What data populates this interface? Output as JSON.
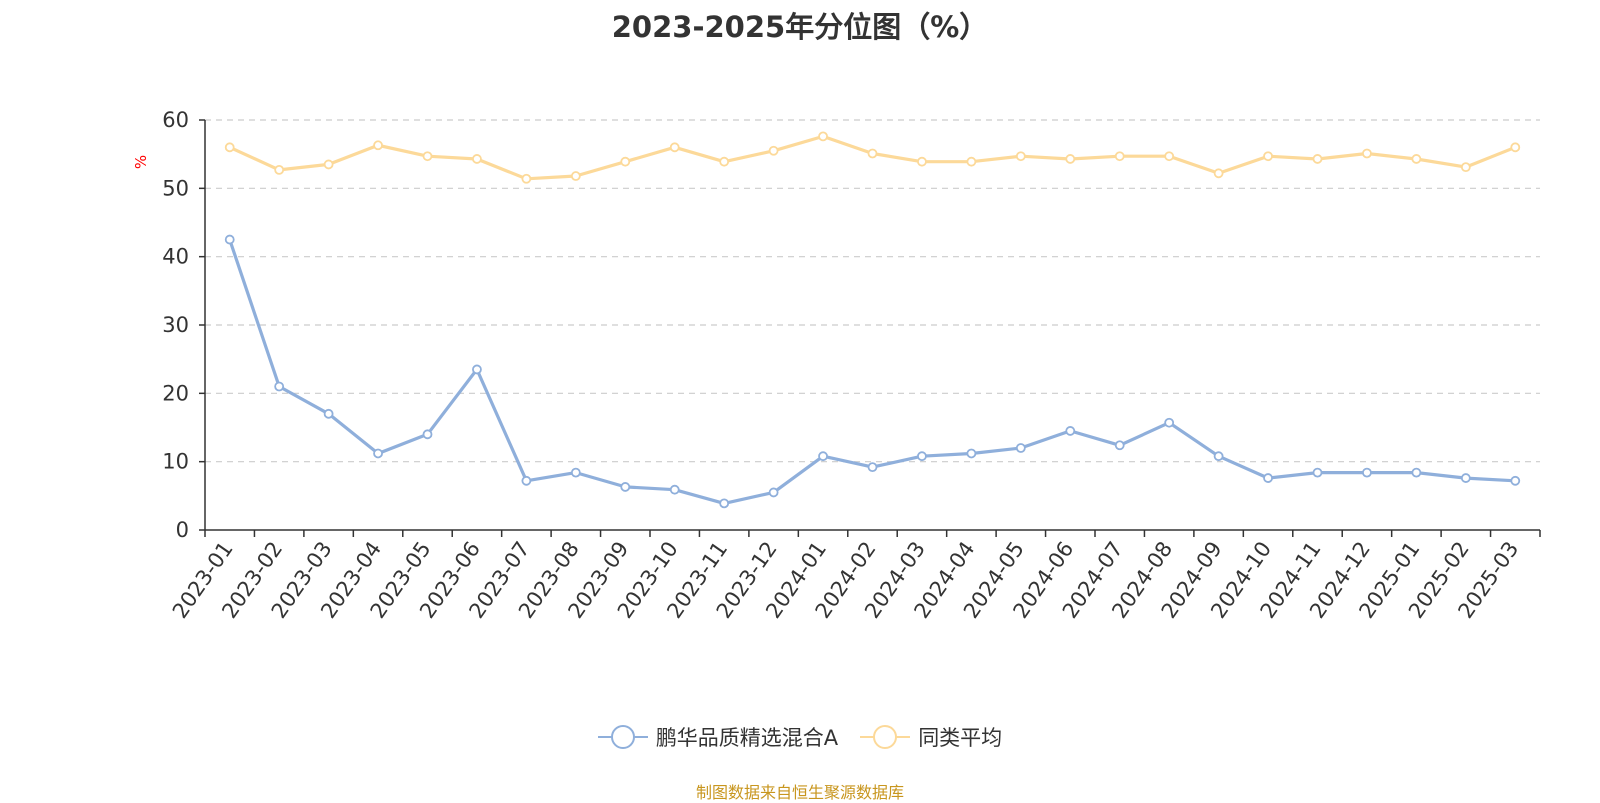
{
  "chart_data": {
    "type": "line",
    "title": "2023-2025年分位图（%）",
    "ylabel": "%",
    "xlabel": "",
    "ylim": [
      0,
      60
    ],
    "yticks": [
      0,
      10,
      20,
      30,
      40,
      50,
      60
    ],
    "grid": true,
    "legend_position": "bottom",
    "categories": [
      "2023-01",
      "2023-02",
      "2023-03",
      "2023-04",
      "2023-05",
      "2023-06",
      "2023-07",
      "2023-08",
      "2023-09",
      "2023-10",
      "2023-11",
      "2023-12",
      "2024-01",
      "2024-02",
      "2024-03",
      "2024-04",
      "2024-05",
      "2024-06",
      "2024-07",
      "2024-08",
      "2024-09",
      "2024-10",
      "2024-11",
      "2024-12",
      "2025-01",
      "2025-02",
      "2025-03"
    ],
    "series": [
      {
        "name": "鹏华品质精选混合A",
        "color": "#8fafdb",
        "values": [
          42.5,
          21.0,
          17.0,
          11.2,
          14.0,
          23.5,
          7.2,
          8.4,
          6.3,
          5.9,
          3.9,
          5.5,
          10.8,
          9.2,
          10.8,
          11.2,
          12.0,
          14.5,
          12.4,
          15.7,
          10.8,
          7.6,
          8.4,
          8.4,
          8.4,
          7.6,
          7.2
        ]
      },
      {
        "name": "同类平均",
        "color": "#fcd999",
        "values": [
          56.0,
          52.7,
          53.5,
          56.3,
          54.7,
          54.3,
          51.4,
          51.8,
          53.9,
          56.0,
          53.9,
          55.5,
          57.6,
          55.1,
          53.9,
          53.9,
          54.7,
          54.3,
          54.7,
          54.7,
          52.2,
          54.7,
          54.3,
          55.1,
          54.3,
          53.1,
          56.0
        ]
      }
    ]
  },
  "source_text": "制图数据来自恒生聚源数据库",
  "colors": {
    "axis": "#333333",
    "grid": "#cccccc",
    "source": "#c8961e",
    "ylabel": "#ff0000"
  }
}
